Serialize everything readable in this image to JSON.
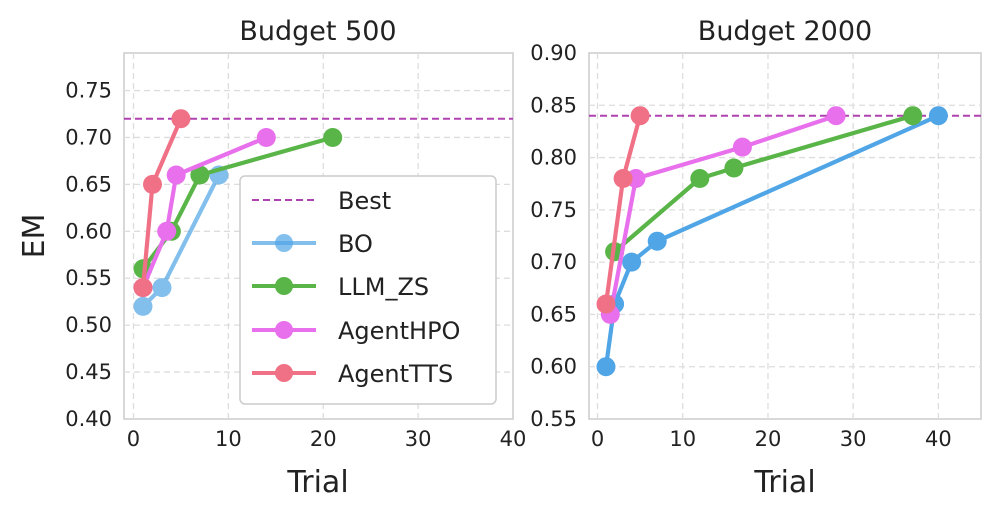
{
  "colors": {
    "Best": "#b041b0",
    "BO": "#4fa5e6",
    "LLM_ZS": "#5ab548",
    "AgentHPO": "#e870ec",
    "AgentTTS": "#f07186"
  },
  "chart_data": [
    {
      "type": "line",
      "title": "Budget 500",
      "xlabel": "Trial",
      "ylabel": "EM",
      "xlim": [
        -1,
        40
      ],
      "ylim": [
        0.4,
        0.79
      ],
      "xticks": [
        0,
        10,
        20,
        30,
        40
      ],
      "yticks": [
        0.4,
        0.45,
        0.5,
        0.55,
        0.6,
        0.65,
        0.7,
        0.75
      ],
      "xtick_labels": [
        "0",
        "10",
        "20",
        "30",
        "40"
      ],
      "ytick_labels": [
        "0.40",
        "0.45",
        "0.50",
        "0.55",
        "0.60",
        "0.65",
        "0.70",
        "0.75"
      ],
      "best": 0.72,
      "series": [
        {
          "name": "BO",
          "x": [
            1,
            3,
            9
          ],
          "y": [
            0.52,
            0.54,
            0.66
          ],
          "alpha": 0.7
        },
        {
          "name": "LLM_ZS",
          "x": [
            1,
            4,
            7,
            21
          ],
          "y": [
            0.56,
            0.6,
            0.66,
            0.7
          ],
          "alpha": 1
        },
        {
          "name": "AgentHPO",
          "x": [
            1,
            3.5,
            4.5,
            14
          ],
          "y": [
            0.54,
            0.6,
            0.66,
            0.7
          ],
          "alpha": 1
        },
        {
          "name": "AgentTTS",
          "x": [
            1,
            2,
            5
          ],
          "y": [
            0.54,
            0.65,
            0.72
          ],
          "alpha": 1
        }
      ],
      "legend": {
        "position": "center-right",
        "entries": [
          "Best",
          "BO",
          "LLM_ZS",
          "AgentHPO",
          "AgentTTS"
        ]
      }
    },
    {
      "type": "line",
      "title": "Budget 2000",
      "xlabel": "Trial",
      "ylabel": "",
      "xlim": [
        -1,
        45
      ],
      "ylim": [
        0.55,
        0.9
      ],
      "xticks": [
        0,
        10,
        20,
        30,
        40
      ],
      "yticks": [
        0.55,
        0.6,
        0.65,
        0.7,
        0.75,
        0.8,
        0.85,
        0.9
      ],
      "xtick_labels": [
        "0",
        "10",
        "20",
        "30",
        "40"
      ],
      "ytick_labels": [
        "0.55",
        "0.60",
        "0.65",
        "0.70",
        "0.75",
        "0.80",
        "0.85",
        "0.90"
      ],
      "best": 0.84,
      "series": [
        {
          "name": "BO",
          "x": [
            1,
            2,
            4,
            7,
            40
          ],
          "y": [
            0.6,
            0.66,
            0.7,
            0.72,
            0.84
          ],
          "alpha": 1
        },
        {
          "name": "LLM_ZS",
          "x": [
            2,
            12,
            16,
            37
          ],
          "y": [
            0.71,
            0.78,
            0.79,
            0.84
          ],
          "alpha": 1
        },
        {
          "name": "AgentHPO",
          "x": [
            1.5,
            4.5,
            17,
            28
          ],
          "y": [
            0.65,
            0.78,
            0.81,
            0.84
          ],
          "alpha": 1
        },
        {
          "name": "AgentTTS",
          "x": [
            1,
            3,
            5
          ],
          "y": [
            0.66,
            0.78,
            0.84
          ],
          "alpha": 1
        }
      ]
    }
  ]
}
